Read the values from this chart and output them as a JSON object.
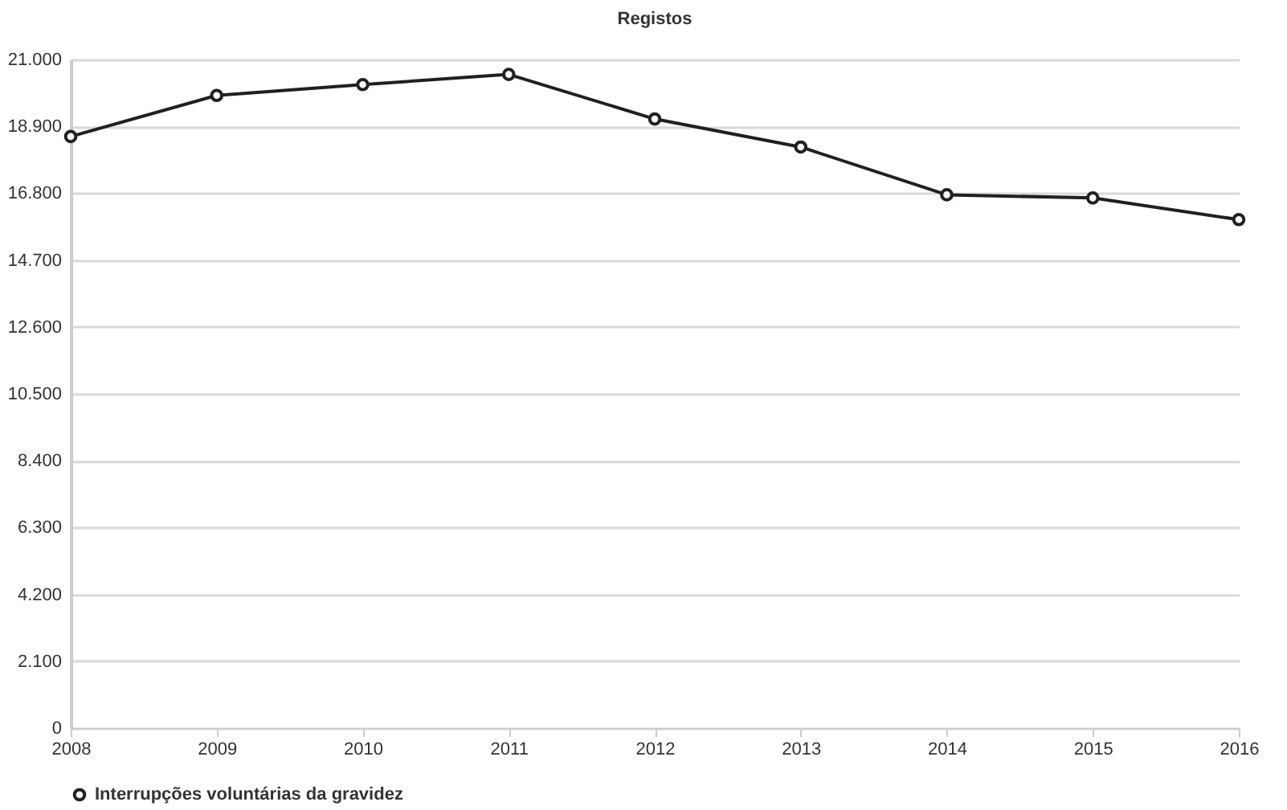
{
  "chart_data": {
    "type": "line",
    "title": "Registos",
    "categories": [
      "2008",
      "2009",
      "2010",
      "2011",
      "2012",
      "2013",
      "2014",
      "2015",
      "2016"
    ],
    "series": [
      {
        "name": "Interrupções voluntárias da gravidez",
        "color": "#231f20",
        "values": [
          18580,
          19870,
          20210,
          20530,
          19130,
          18250,
          16750,
          16650,
          15970
        ]
      }
    ],
    "ylim": [
      0,
      21000
    ],
    "yticks": [
      0,
      {
        "value": 2100,
        "label": "2.100"
      },
      {
        "value": 4200,
        "label": "4.200"
      },
      {
        "value": 6300,
        "label": "6.300"
      },
      {
        "value": 8400,
        "label": "8.400"
      },
      {
        "value": 10500,
        "label": "10.500"
      },
      {
        "value": 12600,
        "label": "12.600"
      },
      {
        "value": 14700,
        "label": "14.700"
      },
      {
        "value": 16800,
        "label": "16.800"
      },
      {
        "value": 18900,
        "label": "18.900"
      },
      {
        "value": 21000,
        "label": "21.000"
      }
    ],
    "grid": "y",
    "legend": "bottom",
    "marker": "circle",
    "line_style": "solid"
  }
}
